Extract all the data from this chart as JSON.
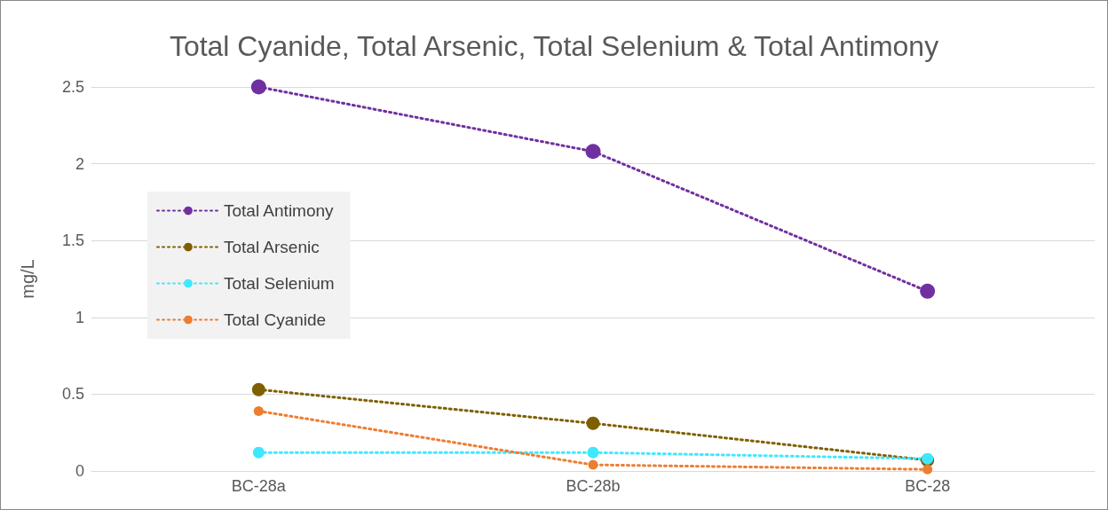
{
  "chart_data": {
    "type": "line",
    "title": "Total Cyanide, Total Arsenic, Total Selenium & Total Antimony",
    "ylabel": "mg/L",
    "categories": [
      "BC-28a",
      "BC-28b",
      "BC-28"
    ],
    "series": [
      {
        "name": "Total Antimony",
        "color": "#7030a0",
        "values": [
          2.5,
          2.08,
          1.17
        ]
      },
      {
        "name": "Total Arsenic",
        "color": "#7f6000",
        "values": [
          0.53,
          0.31,
          0.07
        ]
      },
      {
        "name": "Total Selenium",
        "color": "#3ee8ff",
        "values": [
          0.12,
          0.12,
          0.08
        ]
      },
      {
        "name": "Total Cyanide",
        "color": "#ed7d31",
        "values": [
          0.39,
          0.04,
          0.01
        ]
      }
    ],
    "ylim": [
      0,
      2.5
    ],
    "yticks": [
      0,
      0.5,
      1,
      1.5,
      2,
      2.5
    ],
    "grid": "y",
    "legend": "left",
    "marker": "circle",
    "line_style": "dotted"
  }
}
